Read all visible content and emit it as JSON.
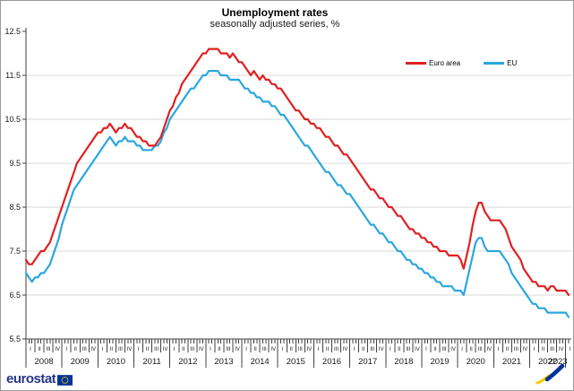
{
  "header": {
    "title": "Unemployment rates",
    "subtitle": "seasonally adjusted series, %"
  },
  "footer": {
    "logo_text": "eurostat"
  },
  "colors": {
    "euro_area_line": "#e02020",
    "eu_line": "#2aa7de",
    "grid": "#d9d9d9",
    "axis": "#404040",
    "logo_navy": "#26358c",
    "flag_blue": "#003399",
    "flag_yellow": "#ffcc00"
  },
  "chart_data": {
    "type": "line",
    "title": "Unemployment rates",
    "subtitle": "seasonally adjusted series, %",
    "frequency": "monthly",
    "x_start": "2008-01",
    "x_end": "2023-02",
    "years": [
      "2008",
      "2009",
      "2010",
      "2011",
      "2012",
      "2013",
      "2014",
      "2015",
      "2016",
      "2017",
      "2018",
      "2019",
      "2020",
      "2021",
      "2022",
      "2023"
    ],
    "quarter_labels": [
      "I",
      "II",
      "III",
      "IV"
    ],
    "ylim": [
      5.5,
      12.5
    ],
    "y_ticks": [
      "5.5",
      "6.5",
      "7.5",
      "8.5",
      "9.5",
      "10.5",
      "11.5",
      "12.5"
    ],
    "grid": "horizontal",
    "legend_position": "top-right",
    "series": [
      {
        "name": "EU",
        "color": "#2aa7de",
        "values": [
          7.0,
          6.9,
          6.8,
          6.9,
          6.9,
          7.0,
          7.0,
          7.1,
          7.2,
          7.4,
          7.6,
          7.8,
          8.1,
          8.3,
          8.5,
          8.7,
          8.9,
          9.0,
          9.1,
          9.2,
          9.3,
          9.4,
          9.5,
          9.6,
          9.7,
          9.8,
          9.9,
          10.0,
          10.1,
          10.0,
          9.9,
          10.0,
          10.0,
          10.1,
          10.0,
          10.0,
          10.0,
          9.9,
          9.9,
          9.8,
          9.8,
          9.8,
          9.8,
          9.9,
          9.9,
          10.0,
          10.2,
          10.3,
          10.5,
          10.6,
          10.7,
          10.8,
          10.9,
          11.0,
          11.1,
          11.2,
          11.2,
          11.3,
          11.4,
          11.5,
          11.5,
          11.6,
          11.6,
          11.6,
          11.6,
          11.5,
          11.5,
          11.5,
          11.4,
          11.4,
          11.4,
          11.4,
          11.3,
          11.2,
          11.2,
          11.1,
          11.1,
          11.0,
          11.0,
          10.9,
          10.9,
          10.9,
          10.8,
          10.8,
          10.7,
          10.6,
          10.6,
          10.5,
          10.4,
          10.3,
          10.2,
          10.1,
          10.0,
          9.9,
          9.9,
          9.8,
          9.7,
          9.6,
          9.5,
          9.4,
          9.3,
          9.3,
          9.2,
          9.1,
          9.0,
          9.0,
          8.9,
          8.8,
          8.8,
          8.7,
          8.6,
          8.5,
          8.4,
          8.3,
          8.2,
          8.1,
          8.1,
          8.0,
          7.9,
          7.9,
          7.8,
          7.7,
          7.7,
          7.6,
          7.5,
          7.5,
          7.4,
          7.3,
          7.3,
          7.2,
          7.2,
          7.1,
          7.1,
          7.0,
          7.0,
          6.9,
          6.9,
          6.8,
          6.8,
          6.7,
          6.7,
          6.7,
          6.7,
          6.6,
          6.6,
          6.6,
          6.5,
          6.8,
          7.1,
          7.4,
          7.7,
          7.8,
          7.8,
          7.6,
          7.5,
          7.5,
          7.5,
          7.5,
          7.5,
          7.4,
          7.3,
          7.2,
          7.0,
          6.9,
          6.8,
          6.7,
          6.6,
          6.5,
          6.4,
          6.3,
          6.3,
          6.2,
          6.2,
          6.2,
          6.1,
          6.1,
          6.1,
          6.1,
          6.1,
          6.1,
          6.1,
          6.0
        ]
      },
      {
        "name": "Euro area",
        "color": "#e02020",
        "values": [
          7.3,
          7.2,
          7.2,
          7.3,
          7.4,
          7.5,
          7.5,
          7.6,
          7.7,
          7.9,
          8.1,
          8.3,
          8.5,
          8.7,
          8.9,
          9.1,
          9.3,
          9.5,
          9.6,
          9.7,
          9.8,
          9.9,
          10.0,
          10.1,
          10.2,
          10.2,
          10.3,
          10.3,
          10.4,
          10.3,
          10.2,
          10.3,
          10.3,
          10.4,
          10.3,
          10.3,
          10.2,
          10.1,
          10.1,
          10.0,
          10.0,
          9.9,
          9.9,
          9.9,
          10.0,
          10.1,
          10.3,
          10.5,
          10.7,
          10.8,
          11.0,
          11.1,
          11.3,
          11.4,
          11.5,
          11.6,
          11.7,
          11.8,
          11.9,
          12.0,
          12.0,
          12.1,
          12.1,
          12.1,
          12.1,
          12.0,
          12.0,
          12.0,
          11.9,
          12.0,
          11.9,
          11.8,
          11.8,
          11.7,
          11.6,
          11.5,
          11.6,
          11.5,
          11.4,
          11.5,
          11.4,
          11.4,
          11.3,
          11.3,
          11.2,
          11.2,
          11.1,
          11.0,
          10.9,
          10.8,
          10.7,
          10.7,
          10.6,
          10.5,
          10.5,
          10.4,
          10.4,
          10.3,
          10.3,
          10.2,
          10.1,
          10.1,
          10.0,
          9.9,
          9.9,
          9.8,
          9.7,
          9.7,
          9.6,
          9.5,
          9.4,
          9.3,
          9.2,
          9.1,
          9.0,
          8.9,
          8.9,
          8.8,
          8.7,
          8.7,
          8.6,
          8.5,
          8.5,
          8.4,
          8.3,
          8.3,
          8.2,
          8.1,
          8.0,
          8.0,
          7.9,
          7.9,
          7.8,
          7.8,
          7.7,
          7.7,
          7.6,
          7.6,
          7.5,
          7.5,
          7.5,
          7.4,
          7.4,
          7.4,
          7.4,
          7.3,
          7.1,
          7.4,
          7.7,
          8.1,
          8.4,
          8.6,
          8.6,
          8.4,
          8.3,
          8.2,
          8.2,
          8.2,
          8.2,
          8.1,
          8.0,
          7.8,
          7.6,
          7.5,
          7.4,
          7.3,
          7.1,
          7.0,
          6.9,
          6.8,
          6.8,
          6.7,
          6.7,
          6.7,
          6.6,
          6.7,
          6.7,
          6.6,
          6.6,
          6.6,
          6.6,
          6.5
        ]
      }
    ]
  }
}
